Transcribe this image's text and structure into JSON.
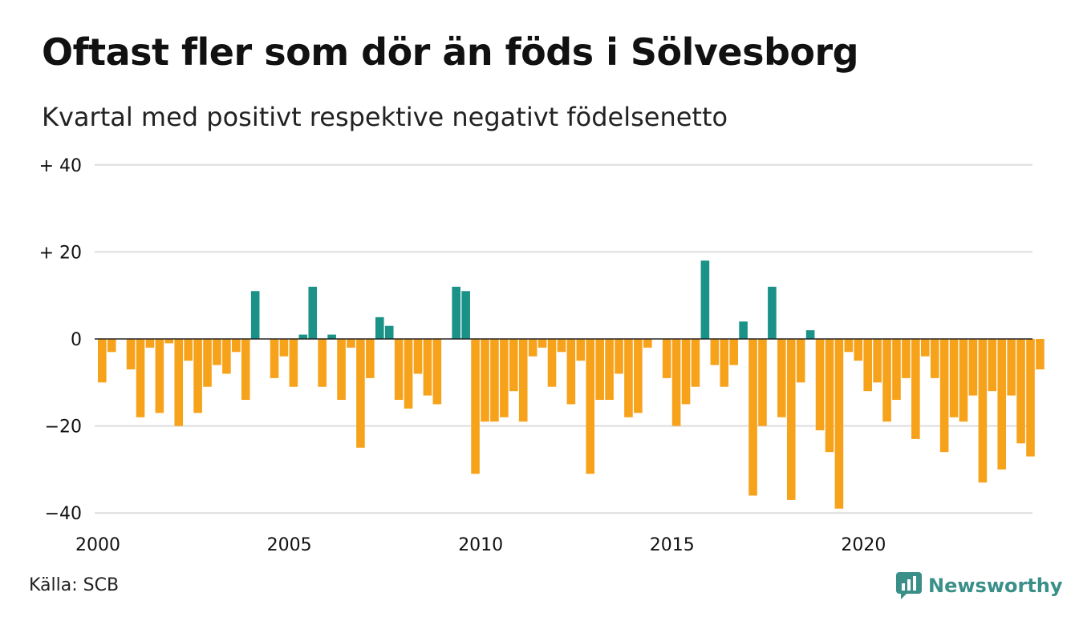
{
  "title": "Oftast fler som dör än föds i Sölvesborg",
  "subtitle": "Kvartal med positivt respektive negativt födelsenetto",
  "source": "Källa: SCB",
  "brand": "Newsworthy",
  "colors": {
    "positive": "#1a9288",
    "negative": "#f7a21b",
    "grid": "#dddddd",
    "zero": "#222222",
    "brand": "#3b8f89"
  },
  "chart_data": {
    "type": "bar",
    "y_ticks": [
      {
        "value": 40,
        "label": "+ 40"
      },
      {
        "value": 20,
        "label": "+ 20"
      },
      {
        "value": 0,
        "label": "0"
      },
      {
        "value": -20,
        "label": "−20"
      },
      {
        "value": -40,
        "label": "−40"
      }
    ],
    "x_ticks": [
      {
        "value": 2000,
        "label": "2000"
      },
      {
        "value": 2005,
        "label": "2005"
      },
      {
        "value": 2010,
        "label": "2010"
      },
      {
        "value": 2015,
        "label": "2015"
      },
      {
        "value": 2020,
        "label": "2020"
      }
    ],
    "ylim": [
      -40,
      40
    ],
    "x_start": "2000 Q1",
    "grid": true,
    "values": [
      -10,
      -3,
      0,
      -7,
      -18,
      -2,
      -17,
      -1,
      -20,
      -5,
      -17,
      -11,
      -6,
      -8,
      -3,
      -14,
      11,
      0,
      -9,
      -4,
      -11,
      1,
      12,
      -11,
      1,
      -14,
      -2,
      -25,
      -9,
      5,
      3,
      -14,
      -16,
      -8,
      -13,
      -15,
      0,
      12,
      11,
      -31,
      -19,
      -19,
      -18,
      -12,
      -19,
      -4,
      -2,
      -11,
      -3,
      -15,
      -5,
      -31,
      -14,
      -14,
      -8,
      -18,
      -17,
      -2,
      0,
      -9,
      -20,
      -15,
      -11,
      18,
      -6,
      -11,
      -6,
      4,
      -36,
      -20,
      12,
      -18,
      -37,
      -10,
      2,
      -21,
      -26,
      -39,
      -3,
      -5,
      -12,
      -10,
      -19,
      -14,
      -9,
      -23,
      -4,
      -9,
      -26,
      -18,
      -19,
      -13,
      -33,
      -12,
      -30,
      -13,
      -24,
      -27,
      -7
    ]
  }
}
